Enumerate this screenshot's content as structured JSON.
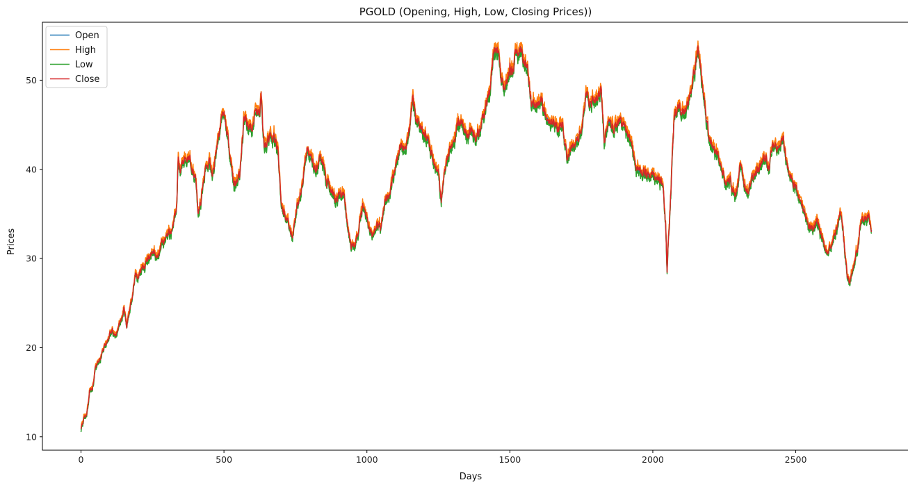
{
  "chart_data": {
    "type": "line",
    "title": "PGOLD (Opening, High, Low, Closing Prices))",
    "xlabel": "Days",
    "ylabel": "Prices",
    "xlim": [
      -135,
      2895
    ],
    "ylim": [
      8.5,
      56.5
    ],
    "xticks": [
      0,
      500,
      1000,
      1500,
      2000,
      2500
    ],
    "yticks": [
      10,
      20,
      30,
      40,
      50
    ],
    "grid": false,
    "legend_position": "top-left",
    "legend": [
      "Open",
      "High",
      "Low",
      "Close"
    ],
    "colors": {
      "Open": "#1f77b4",
      "High": "#ff7f0e",
      "Low": "#2ca02c",
      "Close": "#d62728"
    },
    "close_anchor_points": [
      [
        0,
        10.8
      ],
      [
        10,
        12.2
      ],
      [
        20,
        12.4
      ],
      [
        30,
        15.2
      ],
      [
        40,
        15.5
      ],
      [
        50,
        17.8
      ],
      [
        60,
        18.3
      ],
      [
        80,
        19.8
      ],
      [
        100,
        21.5
      ],
      [
        110,
        21.8
      ],
      [
        120,
        21.2
      ],
      [
        130,
        22.3
      ],
      [
        140,
        23.0
      ],
      [
        150,
        24.2
      ],
      [
        160,
        22.5
      ],
      [
        170,
        24.0
      ],
      [
        180,
        26.0
      ],
      [
        190,
        28.5
      ],
      [
        200,
        27.8
      ],
      [
        210,
        28.8
      ],
      [
        230,
        29.7
      ],
      [
        250,
        30.8
      ],
      [
        270,
        30.2
      ],
      [
        280,
        31.5
      ],
      [
        300,
        32.5
      ],
      [
        310,
        32.9
      ],
      [
        325,
        33.8
      ],
      [
        335,
        36.0
      ],
      [
        340,
        41.5
      ],
      [
        345,
        39.5
      ],
      [
        360,
        41.0
      ],
      [
        380,
        41.2
      ],
      [
        400,
        39.0
      ],
      [
        410,
        35.2
      ],
      [
        420,
        36.5
      ],
      [
        435,
        40.0
      ],
      [
        450,
        41.0
      ],
      [
        460,
        39.5
      ],
      [
        475,
        42.5
      ],
      [
        490,
        45.5
      ],
      [
        500,
        46.3
      ],
      [
        510,
        44.5
      ],
      [
        520,
        41.8
      ],
      [
        535,
        38.5
      ],
      [
        555,
        39.2
      ],
      [
        570,
        45.5
      ],
      [
        580,
        45.2
      ],
      [
        595,
        44.8
      ],
      [
        610,
        46.0
      ],
      [
        625,
        46.5
      ],
      [
        630,
        48.0
      ],
      [
        640,
        42.5
      ],
      [
        655,
        43.5
      ],
      [
        675,
        43.5
      ],
      [
        690,
        42.0
      ],
      [
        700,
        36.0
      ],
      [
        720,
        34.5
      ],
      [
        740,
        32.5
      ],
      [
        760,
        36.5
      ],
      [
        775,
        38.5
      ],
      [
        790,
        42.5
      ],
      [
        805,
        41.5
      ],
      [
        820,
        40.0
      ],
      [
        840,
        41.5
      ],
      [
        860,
        38.5
      ],
      [
        875,
        37.8
      ],
      [
        890,
        36.5
      ],
      [
        905,
        37.0
      ],
      [
        920,
        37.5
      ],
      [
        935,
        33.0
      ],
      [
        945,
        31.5
      ],
      [
        960,
        31.8
      ],
      [
        975,
        34.0
      ],
      [
        985,
        36.0
      ],
      [
        1000,
        34.5
      ],
      [
        1020,
        32.5
      ],
      [
        1035,
        34.0
      ],
      [
        1050,
        33.2
      ],
      [
        1065,
        36.5
      ],
      [
        1080,
        37.5
      ],
      [
        1100,
        40.5
      ],
      [
        1115,
        42.3
      ],
      [
        1135,
        42.5
      ],
      [
        1150,
        44.5
      ],
      [
        1160,
        48.5
      ],
      [
        1170,
        46.0
      ],
      [
        1185,
        45.0
      ],
      [
        1205,
        43.8
      ],
      [
        1220,
        42.5
      ],
      [
        1235,
        40.5
      ],
      [
        1250,
        39.5
      ],
      [
        1260,
        36.5
      ],
      [
        1275,
        40.5
      ],
      [
        1290,
        42.5
      ],
      [
        1305,
        43.0
      ],
      [
        1320,
        45.5
      ],
      [
        1335,
        45.0
      ],
      [
        1350,
        43.5
      ],
      [
        1365,
        44.8
      ],
      [
        1380,
        43.8
      ],
      [
        1395,
        44.5
      ],
      [
        1410,
        46.0
      ],
      [
        1420,
        48.0
      ],
      [
        1430,
        48.5
      ],
      [
        1440,
        52.0
      ],
      [
        1450,
        54.0
      ],
      [
        1465,
        51.5
      ],
      [
        1475,
        49.0
      ],
      [
        1490,
        50.0
      ],
      [
        1500,
        51.8
      ],
      [
        1510,
        50.5
      ],
      [
        1520,
        53.5
      ],
      [
        1535,
        53.5
      ],
      [
        1545,
        52.5
      ],
      [
        1560,
        52.0
      ],
      [
        1575,
        47.5
      ],
      [
        1590,
        47.0
      ],
      [
        1610,
        47.5
      ],
      [
        1630,
        46.0
      ],
      [
        1650,
        45.5
      ],
      [
        1670,
        44.5
      ],
      [
        1685,
        45.2
      ],
      [
        1700,
        41.5
      ],
      [
        1715,
        42.5
      ],
      [
        1735,
        42.8
      ],
      [
        1750,
        44.5
      ],
      [
        1765,
        48.0
      ],
      [
        1780,
        47.5
      ],
      [
        1800,
        48.0
      ],
      [
        1820,
        48.5
      ],
      [
        1830,
        43.0
      ],
      [
        1845,
        45.5
      ],
      [
        1865,
        44.5
      ],
      [
        1880,
        45.5
      ],
      [
        1900,
        45.0
      ],
      [
        1920,
        43.5
      ],
      [
        1940,
        40.0
      ],
      [
        1960,
        40.0
      ],
      [
        1980,
        39.5
      ],
      [
        2000,
        39.5
      ],
      [
        2020,
        39.0
      ],
      [
        2035,
        38.2
      ],
      [
        2045,
        33.5
      ],
      [
        2050,
        29.0
      ],
      [
        2060,
        35.0
      ],
      [
        2075,
        46.5
      ],
      [
        2090,
        47.0
      ],
      [
        2110,
        46.5
      ],
      [
        2130,
        48.5
      ],
      [
        2145,
        51.0
      ],
      [
        2160,
        53.5
      ],
      [
        2170,
        50.5
      ],
      [
        2180,
        48.0
      ],
      [
        2195,
        44.0
      ],
      [
        2210,
        42.5
      ],
      [
        2225,
        41.5
      ],
      [
        2240,
        40.0
      ],
      [
        2255,
        38.5
      ],
      [
        2270,
        38.8
      ],
      [
        2290,
        37.0
      ],
      [
        2305,
        40.5
      ],
      [
        2320,
        38.0
      ],
      [
        2335,
        37.5
      ],
      [
        2350,
        39.5
      ],
      [
        2365,
        40.0
      ],
      [
        2380,
        40.5
      ],
      [
        2395,
        41.5
      ],
      [
        2405,
        40.0
      ],
      [
        2420,
        43.0
      ],
      [
        2440,
        42.5
      ],
      [
        2455,
        43.5
      ],
      [
        2470,
        40.5
      ],
      [
        2485,
        39.0
      ],
      [
        2500,
        38.0
      ],
      [
        2515,
        36.5
      ],
      [
        2530,
        35.5
      ],
      [
        2545,
        33.8
      ],
      [
        2560,
        33.5
      ],
      [
        2575,
        34.5
      ],
      [
        2590,
        32.5
      ],
      [
        2610,
        30.5
      ],
      [
        2625,
        31.5
      ],
      [
        2640,
        33.0
      ],
      [
        2655,
        35.5
      ],
      [
        2665,
        33.5
      ],
      [
        2680,
        28.0
      ],
      [
        2690,
        27.5
      ],
      [
        2700,
        29.0
      ],
      [
        2715,
        31.0
      ],
      [
        2730,
        34.5
      ],
      [
        2745,
        34.8
      ],
      [
        2755,
        34.5
      ],
      [
        2765,
        33.3
      ]
    ]
  }
}
